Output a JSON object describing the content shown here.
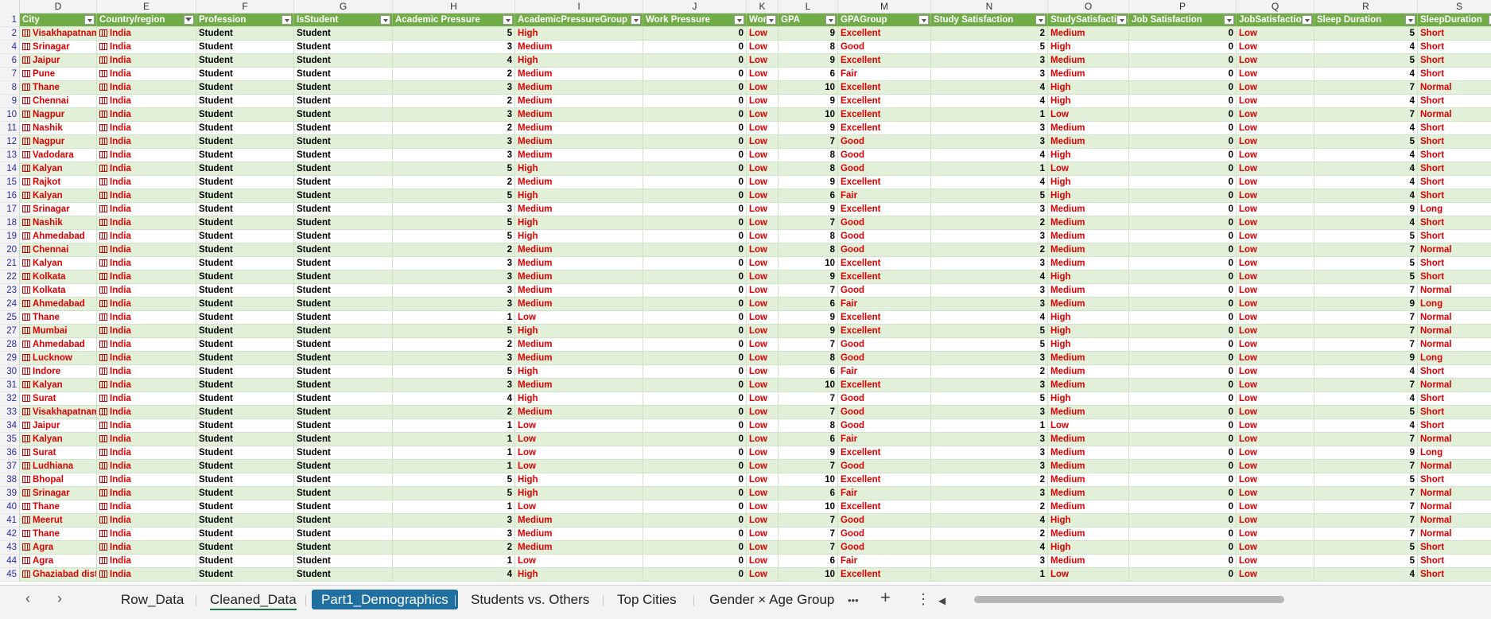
{
  "columns": [
    {
      "letter": "D",
      "header": "City",
      "w": 97,
      "filtered": false
    },
    {
      "letter": "E",
      "header": "Country/region",
      "w": 125,
      "filtered": true
    },
    {
      "letter": "F",
      "header": "Profession",
      "w": 123,
      "filtered": false
    },
    {
      "letter": "G",
      "header": "IsStudent",
      "w": 124,
      "filtered": false
    },
    {
      "letter": "H",
      "header": "Academic Pressure",
      "w": 154,
      "filtered": false
    },
    {
      "letter": "I",
      "header": "AcademicPressureGroup",
      "w": 161,
      "filtered": false
    },
    {
      "letter": "J",
      "header": "Work Pressure",
      "w": 130,
      "filtered": false
    },
    {
      "letter": "K",
      "header": "Work",
      "w": 40,
      "filtered": false
    },
    {
      "letter": "L",
      "header": "GPA",
      "w": 75,
      "filtered": false
    },
    {
      "letter": "M",
      "header": "GPAGroup",
      "w": 117,
      "filtered": false
    },
    {
      "letter": "N",
      "header": "Study Satisfaction",
      "w": 147,
      "filtered": false
    },
    {
      "letter": "O",
      "header": "StudySatisfaction",
      "w": 102,
      "filtered": false
    },
    {
      "letter": "P",
      "header": "Job Satisfaction",
      "w": 135,
      "filtered": false
    },
    {
      "letter": "Q",
      "header": "JobSatisfaction",
      "w": 98,
      "filtered": false
    },
    {
      "letter": "R",
      "header": "Sleep Duration",
      "w": 130,
      "filtered": false
    },
    {
      "letter": "S",
      "header": "SleepDuration",
      "w": 105,
      "filtered": false
    }
  ],
  "rows": [
    {
      "n": "2",
      "city": "Visakhapatnam",
      "ap": "5",
      "apg": "High",
      "gpa": "9",
      "gpag": "Excellent",
      "ss": "2",
      "ssg": "Medium",
      "sd": "5",
      "sdg": "Short"
    },
    {
      "n": "4",
      "city": "Srinagar",
      "ap": "3",
      "apg": "Medium",
      "gpa": "8",
      "gpag": "Good",
      "ss": "5",
      "ssg": "High",
      "sd": "4",
      "sdg": "Short"
    },
    {
      "n": "6",
      "city": "Jaipur",
      "ap": "4",
      "apg": "High",
      "gpa": "9",
      "gpag": "Excellent",
      "ss": "3",
      "ssg": "Medium",
      "sd": "5",
      "sdg": "Short"
    },
    {
      "n": "7",
      "city": "Pune",
      "ap": "2",
      "apg": "Medium",
      "gpa": "6",
      "gpag": "Fair",
      "ss": "3",
      "ssg": "Medium",
      "sd": "4",
      "sdg": "Short"
    },
    {
      "n": "8",
      "city": "Thane",
      "ap": "3",
      "apg": "Medium",
      "gpa": "10",
      "gpag": "Excellent",
      "ss": "4",
      "ssg": "High",
      "sd": "7",
      "sdg": "Normal"
    },
    {
      "n": "9",
      "city": "Chennai",
      "ap": "2",
      "apg": "Medium",
      "gpa": "9",
      "gpag": "Excellent",
      "ss": "4",
      "ssg": "High",
      "sd": "4",
      "sdg": "Short"
    },
    {
      "n": "10",
      "city": "Nagpur",
      "ap": "3",
      "apg": "Medium",
      "gpa": "10",
      "gpag": "Excellent",
      "ss": "1",
      "ssg": "Low",
      "sd": "7",
      "sdg": "Normal"
    },
    {
      "n": "11",
      "city": "Nashik",
      "ap": "2",
      "apg": "Medium",
      "gpa": "9",
      "gpag": "Excellent",
      "ss": "3",
      "ssg": "Medium",
      "sd": "4",
      "sdg": "Short"
    },
    {
      "n": "12",
      "city": "Nagpur",
      "ap": "3",
      "apg": "Medium",
      "gpa": "7",
      "gpag": "Good",
      "ss": "3",
      "ssg": "Medium",
      "sd": "5",
      "sdg": "Short"
    },
    {
      "n": "13",
      "city": "Vadodara",
      "ap": "3",
      "apg": "Medium",
      "gpa": "8",
      "gpag": "Good",
      "ss": "4",
      "ssg": "High",
      "sd": "4",
      "sdg": "Short"
    },
    {
      "n": "14",
      "city": "Kalyan",
      "ap": "5",
      "apg": "High",
      "gpa": "8",
      "gpag": "Good",
      "ss": "1",
      "ssg": "Low",
      "sd": "4",
      "sdg": "Short"
    },
    {
      "n": "15",
      "city": "Rajkot",
      "ap": "2",
      "apg": "Medium",
      "gpa": "9",
      "gpag": "Excellent",
      "ss": "4",
      "ssg": "High",
      "sd": "4",
      "sdg": "Short"
    },
    {
      "n": "16",
      "city": "Kalyan",
      "ap": "5",
      "apg": "High",
      "gpa": "6",
      "gpag": "Fair",
      "ss": "5",
      "ssg": "High",
      "sd": "4",
      "sdg": "Short"
    },
    {
      "n": "17",
      "city": "Srinagar",
      "ap": "3",
      "apg": "Medium",
      "gpa": "9",
      "gpag": "Excellent",
      "ss": "3",
      "ssg": "Medium",
      "sd": "9",
      "sdg": "Long"
    },
    {
      "n": "18",
      "city": "Nashik",
      "ap": "5",
      "apg": "High",
      "gpa": "7",
      "gpag": "Good",
      "ss": "2",
      "ssg": "Medium",
      "sd": "4",
      "sdg": "Short"
    },
    {
      "n": "19",
      "city": "Ahmedabad",
      "ap": "5",
      "apg": "High",
      "gpa": "8",
      "gpag": "Good",
      "ss": "3",
      "ssg": "Medium",
      "sd": "5",
      "sdg": "Short"
    },
    {
      "n": "20",
      "city": "Chennai",
      "ap": "2",
      "apg": "Medium",
      "gpa": "8",
      "gpag": "Good",
      "ss": "2",
      "ssg": "Medium",
      "sd": "7",
      "sdg": "Normal"
    },
    {
      "n": "21",
      "city": "Kalyan",
      "ap": "3",
      "apg": "Medium",
      "gpa": "10",
      "gpag": "Excellent",
      "ss": "3",
      "ssg": "Medium",
      "sd": "5",
      "sdg": "Short"
    },
    {
      "n": "22",
      "city": "Kolkata",
      "ap": "3",
      "apg": "Medium",
      "gpa": "9",
      "gpag": "Excellent",
      "ss": "4",
      "ssg": "High",
      "sd": "5",
      "sdg": "Short"
    },
    {
      "n": "23",
      "city": "Kolkata",
      "ap": "3",
      "apg": "Medium",
      "gpa": "7",
      "gpag": "Good",
      "ss": "3",
      "ssg": "Medium",
      "sd": "7",
      "sdg": "Normal"
    },
    {
      "n": "24",
      "city": "Ahmedabad",
      "ap": "3",
      "apg": "Medium",
      "gpa": "6",
      "gpag": "Fair",
      "ss": "3",
      "ssg": "Medium",
      "sd": "9",
      "sdg": "Long"
    },
    {
      "n": "25",
      "city": "Thane",
      "ap": "1",
      "apg": "Low",
      "gpa": "9",
      "gpag": "Excellent",
      "ss": "4",
      "ssg": "High",
      "sd": "7",
      "sdg": "Normal"
    },
    {
      "n": "27",
      "city": "Mumbai",
      "ap": "5",
      "apg": "High",
      "gpa": "9",
      "gpag": "Excellent",
      "ss": "5",
      "ssg": "High",
      "sd": "7",
      "sdg": "Normal"
    },
    {
      "n": "28",
      "city": "Ahmedabad",
      "ap": "2",
      "apg": "Medium",
      "gpa": "7",
      "gpag": "Good",
      "ss": "5",
      "ssg": "High",
      "sd": "7",
      "sdg": "Normal"
    },
    {
      "n": "29",
      "city": "Lucknow",
      "ap": "3",
      "apg": "Medium",
      "gpa": "8",
      "gpag": "Good",
      "ss": "3",
      "ssg": "Medium",
      "sd": "9",
      "sdg": "Long"
    },
    {
      "n": "30",
      "city": "Indore",
      "ap": "5",
      "apg": "High",
      "gpa": "6",
      "gpag": "Fair",
      "ss": "2",
      "ssg": "Medium",
      "sd": "4",
      "sdg": "Short"
    },
    {
      "n": "31",
      "city": "Kalyan",
      "ap": "3",
      "apg": "Medium",
      "gpa": "10",
      "gpag": "Excellent",
      "ss": "3",
      "ssg": "Medium",
      "sd": "7",
      "sdg": "Normal"
    },
    {
      "n": "32",
      "city": "Surat",
      "ap": "4",
      "apg": "High",
      "gpa": "7",
      "gpag": "Good",
      "ss": "5",
      "ssg": "High",
      "sd": "4",
      "sdg": "Short"
    },
    {
      "n": "33",
      "city": "Visakhapatnam",
      "ap": "2",
      "apg": "Medium",
      "gpa": "7",
      "gpag": "Good",
      "ss": "3",
      "ssg": "Medium",
      "sd": "5",
      "sdg": "Short"
    },
    {
      "n": "34",
      "city": "Jaipur",
      "ap": "1",
      "apg": "Low",
      "gpa": "8",
      "gpag": "Good",
      "ss": "1",
      "ssg": "Low",
      "sd": "4",
      "sdg": "Short"
    },
    {
      "n": "35",
      "city": "Kalyan",
      "ap": "1",
      "apg": "Low",
      "gpa": "6",
      "gpag": "Fair",
      "ss": "3",
      "ssg": "Medium",
      "sd": "7",
      "sdg": "Normal"
    },
    {
      "n": "36",
      "city": "Surat",
      "ap": "1",
      "apg": "Low",
      "gpa": "9",
      "gpag": "Excellent",
      "ss": "3",
      "ssg": "Medium",
      "sd": "9",
      "sdg": "Long"
    },
    {
      "n": "37",
      "city": "Ludhiana",
      "ap": "1",
      "apg": "Low",
      "gpa": "7",
      "gpag": "Good",
      "ss": "3",
      "ssg": "Medium",
      "sd": "7",
      "sdg": "Normal"
    },
    {
      "n": "38",
      "city": "Bhopal",
      "ap": "5",
      "apg": "High",
      "gpa": "10",
      "gpag": "Excellent",
      "ss": "2",
      "ssg": "Medium",
      "sd": "5",
      "sdg": "Short"
    },
    {
      "n": "39",
      "city": "Srinagar",
      "ap": "5",
      "apg": "High",
      "gpa": "6",
      "gpag": "Fair",
      "ss": "3",
      "ssg": "Medium",
      "sd": "7",
      "sdg": "Normal"
    },
    {
      "n": "40",
      "city": "Thane",
      "ap": "1",
      "apg": "Low",
      "gpa": "10",
      "gpag": "Excellent",
      "ss": "2",
      "ssg": "Medium",
      "sd": "7",
      "sdg": "Normal"
    },
    {
      "n": "41",
      "city": "Meerut",
      "ap": "3",
      "apg": "Medium",
      "gpa": "7",
      "gpag": "Good",
      "ss": "4",
      "ssg": "High",
      "sd": "7",
      "sdg": "Normal"
    },
    {
      "n": "42",
      "city": "Thane",
      "ap": "3",
      "apg": "Medium",
      "gpa": "7",
      "gpag": "Good",
      "ss": "2",
      "ssg": "Medium",
      "sd": "7",
      "sdg": "Normal"
    },
    {
      "n": "43",
      "city": "Agra",
      "ap": "2",
      "apg": "Medium",
      "gpa": "7",
      "gpag": "Good",
      "ss": "4",
      "ssg": "High",
      "sd": "5",
      "sdg": "Short"
    },
    {
      "n": "44",
      "city": "Agra",
      "ap": "1",
      "apg": "Low",
      "gpa": "6",
      "gpag": "Fair",
      "ss": "3",
      "ssg": "Medium",
      "sd": "5",
      "sdg": "Short"
    },
    {
      "n": "45",
      "city": "Ghaziabad district",
      "ap": "4",
      "apg": "High",
      "gpa": "10",
      "gpag": "Excellent",
      "ss": "1",
      "ssg": "Low",
      "sd": "4",
      "sdg": "Short"
    }
  ],
  "constants": {
    "country": "India",
    "profession": "Student",
    "is_student": "Student",
    "work_pressure": "0",
    "work_group": "Low",
    "job_sat": "0",
    "job_sat_group": "Low",
    "header_row_num": "1"
  },
  "tabs": [
    {
      "label": "Row_Data",
      "state": "normal"
    },
    {
      "label": "Cleaned_Data",
      "state": "active"
    },
    {
      "label": "Part1_Demographics",
      "state": "selected"
    },
    {
      "label": "Students vs. Others",
      "state": "normal"
    },
    {
      "label": "Top Cities",
      "state": "normal"
    },
    {
      "label": "Gender × Age Group",
      "state": "normal"
    }
  ],
  "tabbar": {
    "prev_icon": "‹",
    "next_icon": "›",
    "more_icon": "•••",
    "add_icon": "+",
    "options_icon": "⋮",
    "scroll_left_icon": "◀"
  },
  "colors": {
    "header_bg": "#70ad47",
    "band_bg": "#e2f0d9",
    "value_red": "#e00000",
    "selected_tab": "#1f6fa0"
  }
}
